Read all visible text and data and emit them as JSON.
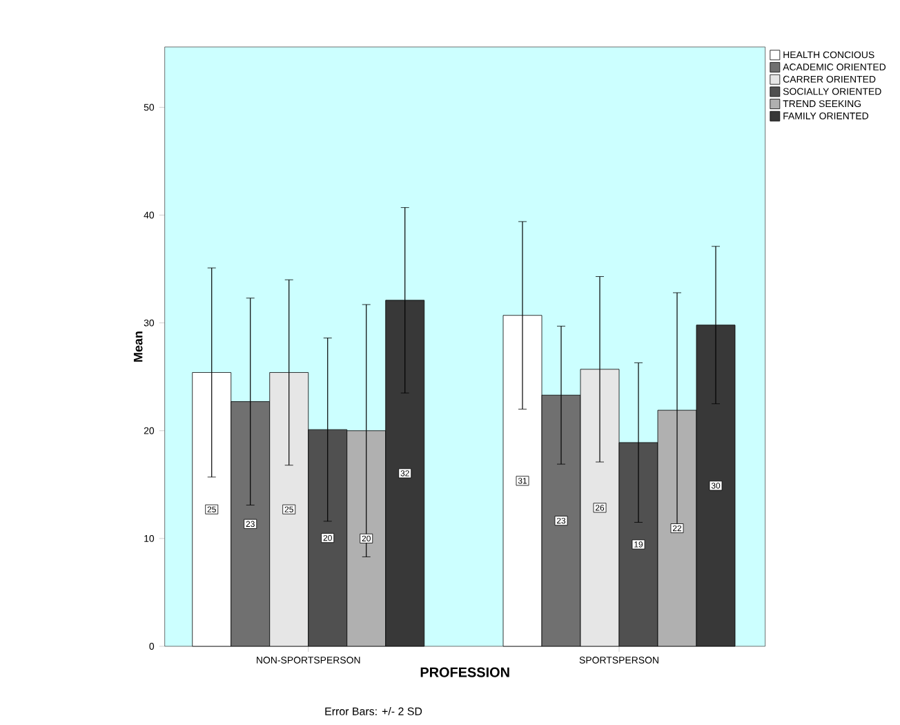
{
  "chart_data": {
    "type": "bar",
    "xlabel": "PROFESSION",
    "ylabel": "Mean",
    "categories": [
      "NON-SPORTSPERSON",
      "SPORTSPERSON"
    ],
    "series": [
      {
        "name": "HEALTH CONCIOUS",
        "color": "#ffffff",
        "values": [
          25.4,
          30.7
        ],
        "errors": [
          9.7,
          8.7
        ],
        "value_labels": [
          "25",
          "31"
        ]
      },
      {
        "name": "ACADEMIC ORIENTED",
        "color": "#707070",
        "values": [
          22.7,
          23.3
        ],
        "errors": [
          9.6,
          6.4
        ],
        "value_labels": [
          "23",
          "23"
        ]
      },
      {
        "name": "CARRER ORIENTED",
        "color": "#e6e6e6",
        "values": [
          25.4,
          25.7
        ],
        "errors": [
          8.6,
          8.6
        ],
        "value_labels": [
          "25",
          "26"
        ]
      },
      {
        "name": "SOCIALLY ORIENTED",
        "color": "#505050",
        "values": [
          20.1,
          18.9
        ],
        "errors": [
          8.5,
          7.4
        ],
        "value_labels": [
          "20",
          "19"
        ]
      },
      {
        "name": "TREND SEEKING",
        "color": "#b0b0b0",
        "values": [
          20.0,
          21.9
        ],
        "errors": [
          11.7,
          10.9
        ],
        "value_labels": [
          "20",
          "22"
        ]
      },
      {
        "name": "FAMILY ORIENTED",
        "color": "#383838",
        "values": [
          32.1,
          29.8
        ],
        "errors": [
          8.6,
          7.3
        ],
        "value_labels": [
          "32",
          "30"
        ]
      }
    ],
    "ylim": [
      0,
      55.6
    ],
    "yticks": [
      0,
      10,
      20,
      30,
      40,
      50
    ],
    "legend": "top right",
    "annotations": [
      "Error Bars: +/- 2 SD"
    ]
  }
}
